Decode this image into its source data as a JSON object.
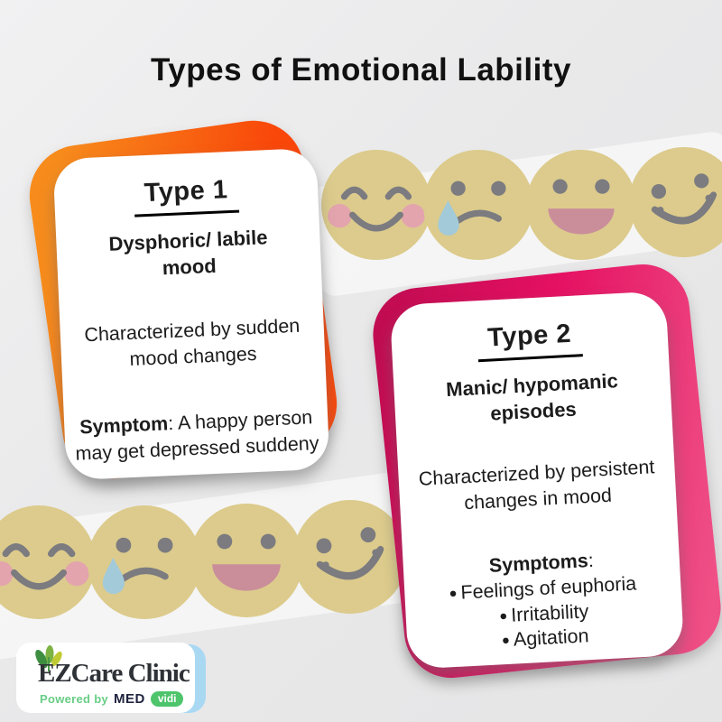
{
  "title": "Types of Emotional Lability",
  "chars": {
    "bullet": "●"
  },
  "cards": [
    {
      "heading": "Type 1",
      "subheading": "Dysphoric/ labile mood",
      "description": "Characterized by sudden mood changes",
      "symptom_label": "Symptom",
      "symptom_rest": ": A happy person may get depressed suddeny",
      "accent_from": "#f78c1c",
      "accent_to": "#f9470a"
    },
    {
      "heading": "Type 2",
      "subheading": "Manic/ hypomanic episodes",
      "description": "Characterized by persistent changes in mood",
      "symptom_label": "Symptoms",
      "symptom_rest": ":",
      "bullets": [
        "Feelings of euphoria",
        "Irritability",
        "Agitation"
      ],
      "accent_from": "#c20c52",
      "accent_mid": "#e51062",
      "accent_to": "#ef5086"
    }
  ],
  "emoji_rows": {
    "top": [
      "blissful",
      "tearful",
      "laughing",
      "smiling"
    ],
    "bottom": [
      "blissful",
      "tearful",
      "laughing",
      "smiling"
    ]
  },
  "logo": {
    "brand": "EZCare Clinic",
    "powered_by": "Powered by",
    "med": "MED",
    "vidi": "vidi"
  },
  "colors": {
    "face_fill": "#dccb8c",
    "face_feature": "#7b7b80",
    "cheek": "#e3a4ae",
    "tear": "#a3cad9",
    "laugh_mouth": "#ca8e9b",
    "logo_blue": "#a9d8f3",
    "powered_green": "#68cd86",
    "vidi_green": "#4ec46b"
  }
}
